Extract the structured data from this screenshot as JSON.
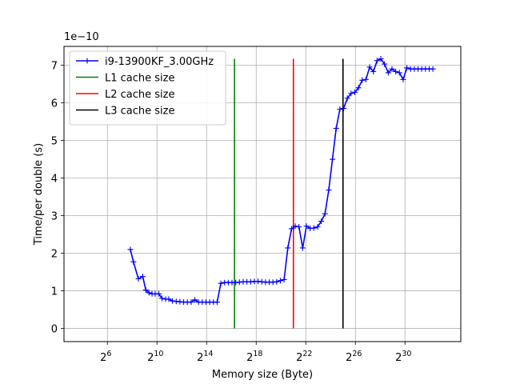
{
  "chart_data": {
    "type": "line",
    "x_scale": "log2",
    "xlabel": "Memory size (Byte)",
    "ylabel": "Time/per double (s)",
    "y_multiplier": "1e−10",
    "xlim_exp": [
      2.5,
      34.5
    ],
    "ylim": [
      -0.35,
      7.5
    ],
    "x_ticks": [
      {
        "exp": 6,
        "base": "2",
        "sup": "6"
      },
      {
        "exp": 10,
        "base": "2",
        "sup": "10"
      },
      {
        "exp": 14,
        "base": "2",
        "sup": "14"
      },
      {
        "exp": 18,
        "base": "2",
        "sup": "18"
      },
      {
        "exp": 22,
        "base": "2",
        "sup": "22"
      },
      {
        "exp": 26,
        "base": "2",
        "sup": "26"
      },
      {
        "exp": 30,
        "base": "2",
        "sup": "30"
      }
    ],
    "y_ticks": [
      {
        "value": 0,
        "label": "0"
      },
      {
        "value": 1,
        "label": "1"
      },
      {
        "value": 2,
        "label": "2"
      },
      {
        "value": 3,
        "label": "3"
      },
      {
        "value": 4,
        "label": "4"
      },
      {
        "value": 5,
        "label": "5"
      },
      {
        "value": 6,
        "label": "6"
      },
      {
        "value": 7,
        "label": "7"
      }
    ],
    "grid": true,
    "legend_position": "top-left",
    "series": [
      {
        "name": "i9-13900KF_3.00GHz",
        "color": "#0000ff",
        "marker": "plus",
        "x_exp": [
          7.85,
          8.1,
          8.5,
          8.85,
          9.1,
          9.35,
          9.6,
          9.85,
          10.15,
          10.4,
          10.7,
          10.95,
          11.25,
          11.55,
          11.85,
          12.15,
          12.45,
          12.75,
          13.05,
          13.35,
          13.65,
          13.95,
          14.25,
          14.55,
          14.85,
          15.15,
          15.45,
          15.75,
          16.05,
          16.35,
          16.65,
          16.95,
          17.25,
          17.55,
          17.85,
          18.15,
          18.45,
          18.75,
          19.05,
          19.35,
          19.65,
          19.95,
          20.25,
          20.55,
          20.85,
          21.15,
          21.45,
          21.75,
          22.05,
          22.35,
          22.65,
          22.95,
          23.25,
          23.55,
          23.85,
          24.15,
          24.45,
          24.75,
          25.05,
          25.35,
          25.65,
          25.95,
          26.25,
          26.55,
          26.85,
          27.15,
          27.45,
          27.75,
          28.05,
          28.35,
          28.65,
          28.95,
          29.25,
          29.55,
          29.85,
          30.15,
          30.45,
          30.75,
          31.05,
          31.35,
          31.65,
          31.95,
          32.25
        ],
        "y": [
          2.1,
          1.77,
          1.32,
          1.38,
          1.02,
          0.95,
          0.92,
          0.92,
          0.92,
          0.8,
          0.78,
          0.78,
          0.73,
          0.72,
          0.71,
          0.7,
          0.7,
          0.7,
          0.76,
          0.7,
          0.7,
          0.7,
          0.7,
          0.7,
          0.7,
          1.2,
          1.22,
          1.22,
          1.22,
          1.22,
          1.23,
          1.24,
          1.24,
          1.24,
          1.25,
          1.25,
          1.24,
          1.23,
          1.23,
          1.23,
          1.24,
          1.27,
          1.3,
          2.14,
          2.65,
          2.72,
          2.7,
          2.14,
          2.72,
          2.66,
          2.67,
          2.7,
          2.85,
          3.05,
          3.68,
          4.5,
          5.32,
          5.83,
          5.85,
          6.12,
          6.25,
          6.28,
          6.4,
          6.6,
          6.62,
          6.95,
          6.83,
          7.12,
          7.17,
          7.03,
          6.8,
          6.9,
          6.83,
          6.8,
          6.62,
          6.93,
          6.9,
          6.9,
          6.9,
          6.9,
          6.9,
          6.9,
          6.9
        ]
      }
    ],
    "reference_lines": [
      {
        "name": "L1 cache size",
        "color": "#008000",
        "x_exp": 16.25,
        "y_range": [
          0,
          7.17
        ]
      },
      {
        "name": "L2 cache size",
        "color": "#ff0000",
        "x_exp": 21.0,
        "y_range": [
          0,
          7.17
        ]
      },
      {
        "name": "L3 cache size",
        "color": "#000000",
        "x_exp": 25.0,
        "y_range": [
          0,
          7.17
        ]
      }
    ]
  }
}
